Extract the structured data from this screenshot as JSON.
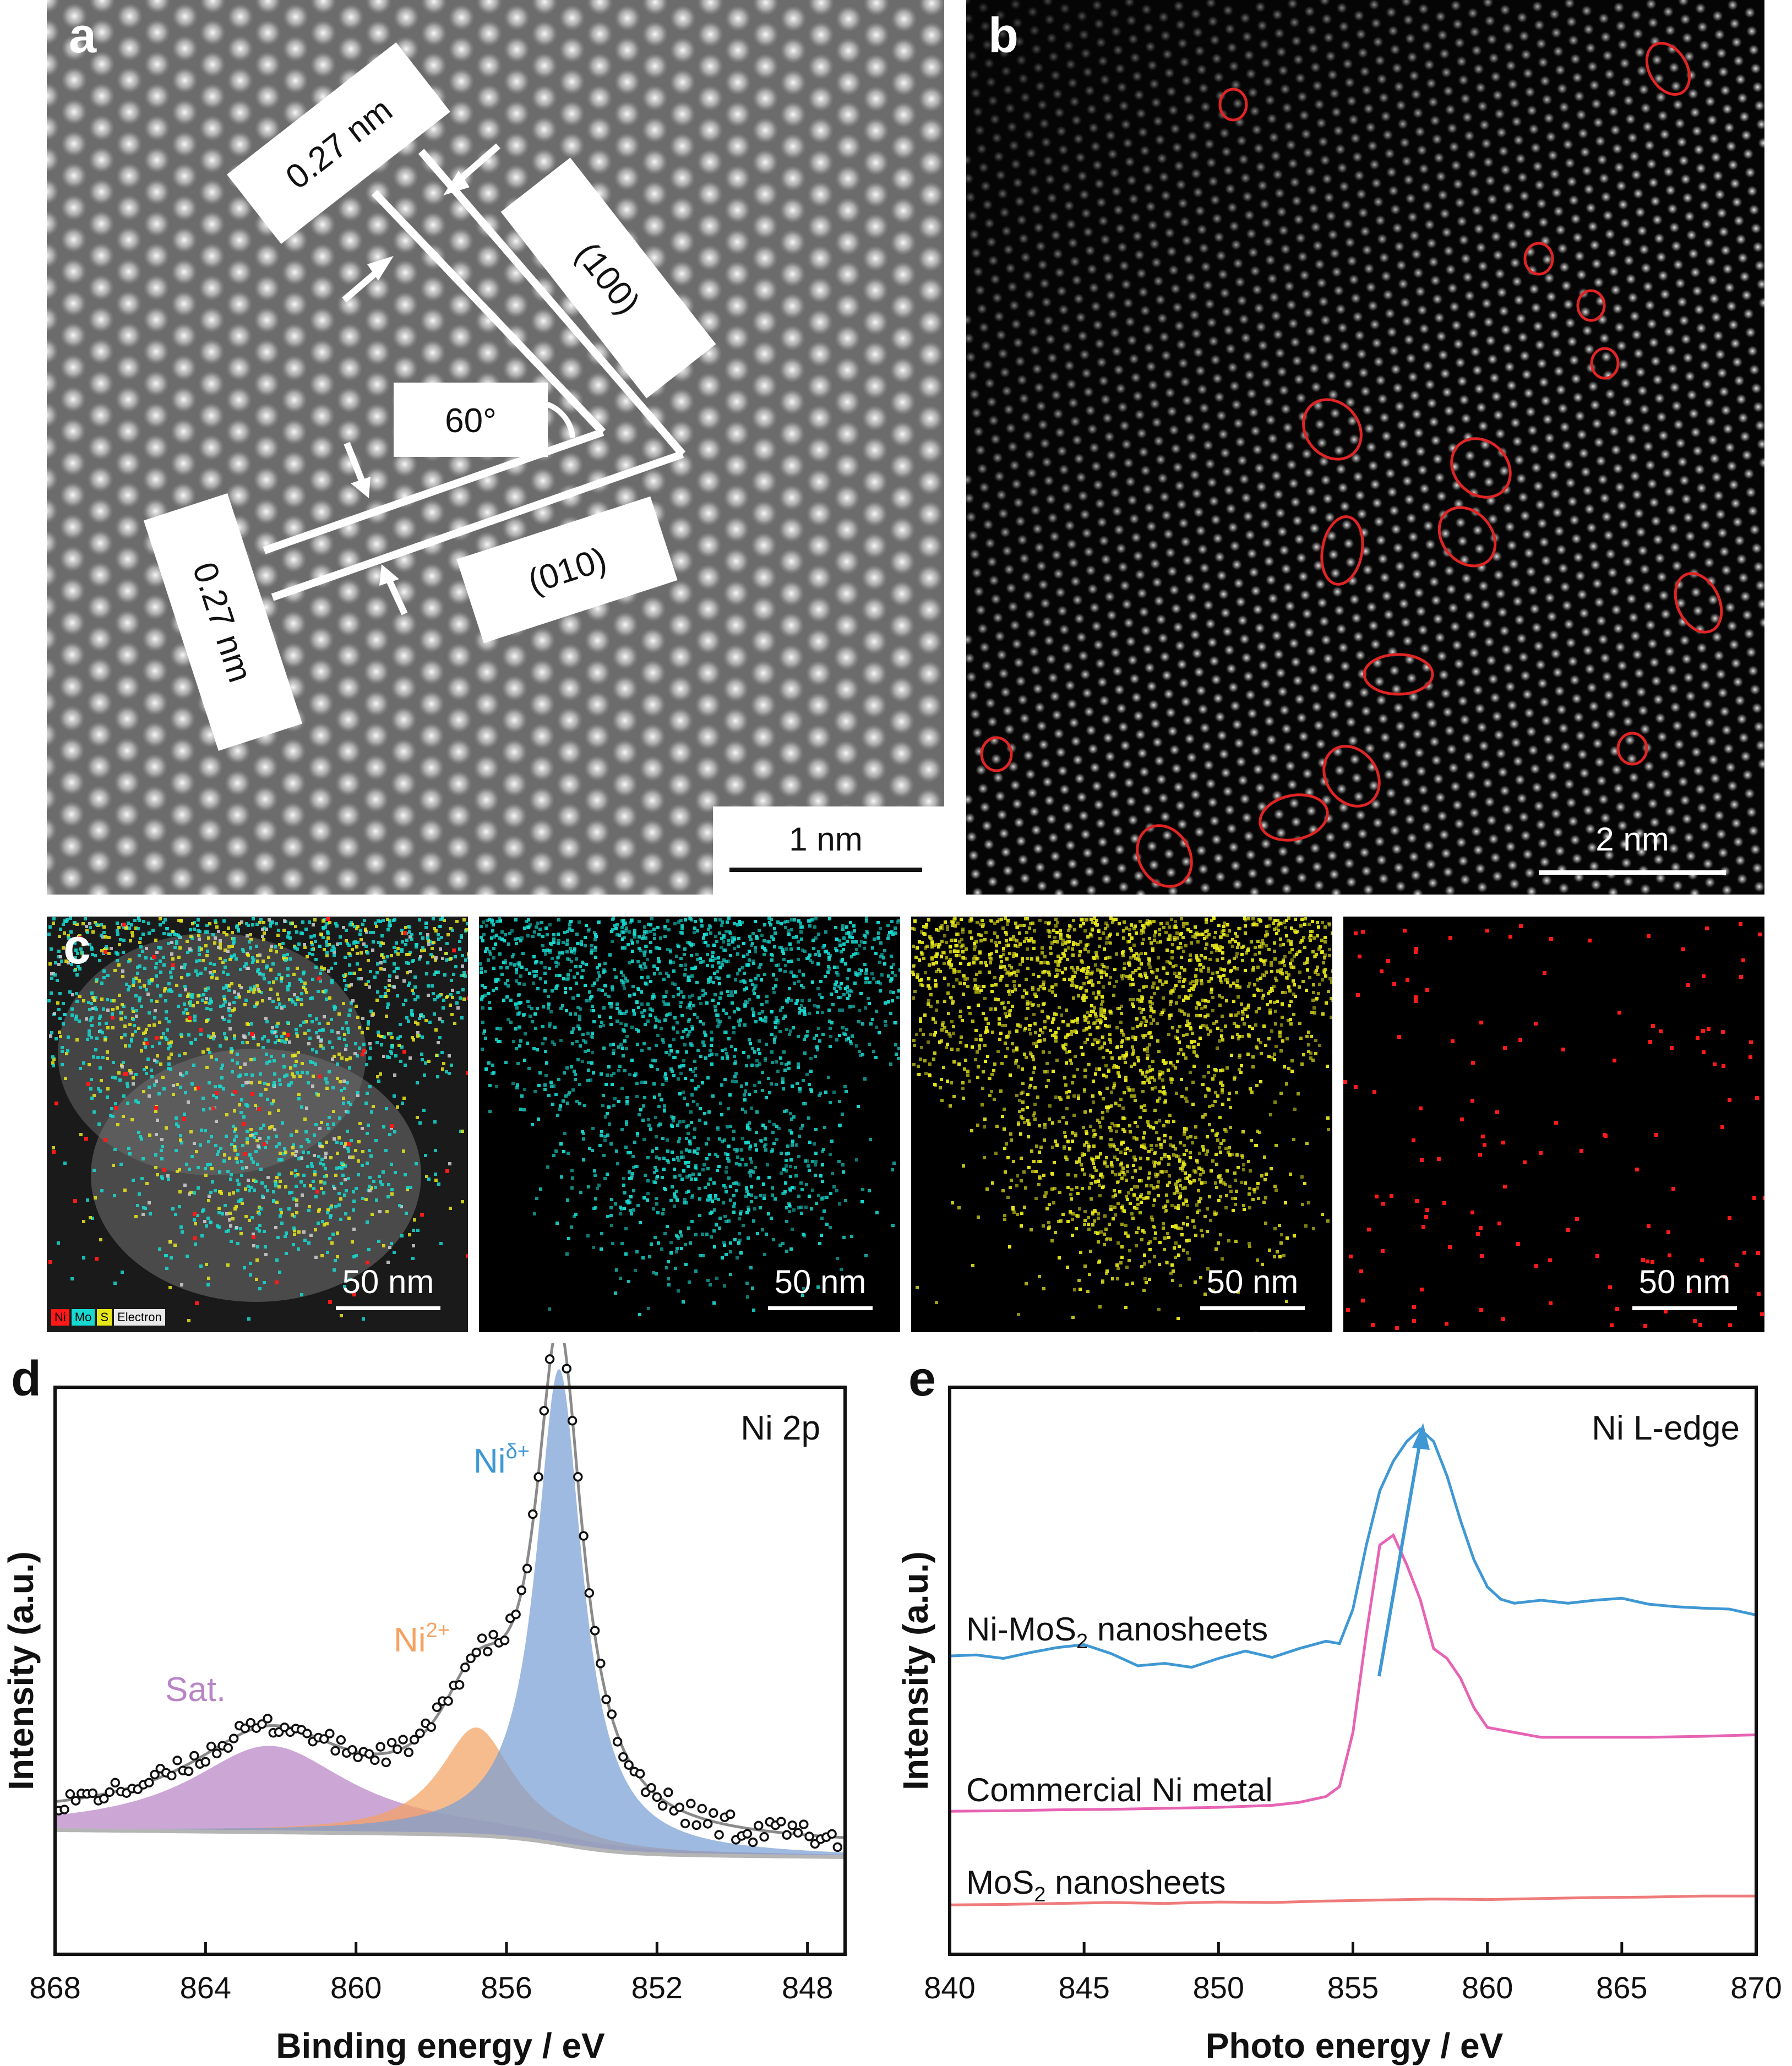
{
  "panel_a": {
    "letter": "a",
    "spacing_top": "0.27 nm",
    "spacing_left": "0.27 nm",
    "plane_100": "(100)",
    "plane_010": "(010)",
    "angle": "60°",
    "scale_bar": "1 nm"
  },
  "panel_b": {
    "letter": "b",
    "scale_bar": "2 nm",
    "marker_color": "#e02424"
  },
  "panel_c": {
    "letter": "c",
    "scale_bars": [
      "50 nm",
      "50 nm",
      "50 nm",
      "50 nm"
    ],
    "legend": [
      "Ni",
      "Mo",
      "S",
      "Electron"
    ],
    "colors": {
      "Ni": "#ff1a1a",
      "Mo": "#17d9d0",
      "S": "#e6e61a",
      "Electron": "#cfcfcf"
    }
  },
  "panel_d": {
    "letter": "d",
    "chart_data": {
      "type": "line",
      "title": "Ni 2p",
      "xlabel": "Binding energy / eV",
      "ylabel": "Intensity (a.u.)",
      "xlim": [
        868,
        847
      ],
      "ylim": [
        0,
        1.05
      ],
      "xticks": [
        868,
        864,
        860,
        856,
        852,
        848
      ],
      "peaks": [
        {
          "name": "Sat.",
          "center": 862.3,
          "height": 0.16,
          "color": "#b985c6"
        },
        {
          "name": "Ni²⁺",
          "center": 856.8,
          "height": 0.2,
          "color": "#f4a261"
        },
        {
          "name": "Niδ⁺",
          "center": 854.6,
          "height": 0.88,
          "color": "#7a9fd4"
        }
      ],
      "label_sat": "Sat.",
      "label_ni2": "Ni",
      "label_ni2_sup": "2+",
      "label_nid": "Ni",
      "label_nid_sup": "δ+"
    }
  },
  "panel_e": {
    "letter": "e",
    "chart_data": {
      "type": "line",
      "title": "Ni L-edge",
      "xlabel": "Photo energy / eV",
      "ylabel": "Intensity (a.u.)",
      "xlim": [
        840,
        870
      ],
      "xticks": [
        840,
        845,
        850,
        855,
        860,
        865,
        870
      ],
      "series": [
        {
          "name": "Ni-MoS₂ nanosheets",
          "label_pre": "Ni-MoS",
          "label_sub": "2",
          "label_post": " nanosheets",
          "color": "#3f98d4",
          "x": [
            840,
            841,
            842,
            843,
            844,
            845,
            846,
            847,
            848,
            849,
            850,
            851,
            852,
            853,
            854,
            854.5,
            855,
            855.5,
            856,
            856.5,
            857,
            857.5,
            858,
            858.5,
            859,
            859.5,
            860,
            860.5,
            861,
            862,
            863,
            864,
            865,
            866,
            867,
            868,
            869,
            870
          ],
          "y": [
            0.605,
            0.607,
            0.6,
            0.612,
            0.622,
            0.628,
            0.61,
            0.585,
            0.59,
            0.582,
            0.6,
            0.615,
            0.602,
            0.62,
            0.635,
            0.63,
            0.7,
            0.83,
            0.94,
            1.0,
            1.04,
            1.065,
            1.04,
            0.97,
            0.88,
            0.8,
            0.745,
            0.72,
            0.712,
            0.718,
            0.712,
            0.718,
            0.722,
            0.71,
            0.705,
            0.702,
            0.7,
            0.688
          ]
        },
        {
          "name": "Commercial Ni metal",
          "color": "#e763b4",
          "x": [
            840,
            842,
            844,
            846,
            848,
            850,
            852,
            853,
            854,
            854.5,
            855,
            855.5,
            856,
            856.5,
            857,
            857.5,
            858,
            858.5,
            859,
            859.5,
            860,
            861,
            862,
            864,
            866,
            868,
            870
          ],
          "y": [
            0.29,
            0.291,
            0.293,
            0.294,
            0.296,
            0.298,
            0.302,
            0.308,
            0.32,
            0.34,
            0.45,
            0.65,
            0.83,
            0.85,
            0.79,
            0.72,
            0.62,
            0.6,
            0.56,
            0.5,
            0.46,
            0.45,
            0.44,
            0.44,
            0.44,
            0.442,
            0.445
          ]
        },
        {
          "name": "MoS₂ nanosheets",
          "label_pre": "MoS",
          "label_sub": "2",
          "label_post": " nanosheets",
          "color": "#ef7b7b",
          "x": [
            840,
            842,
            844,
            846,
            848,
            850,
            852,
            854,
            856,
            858,
            860,
            862,
            864,
            866,
            868,
            870
          ],
          "y": [
            0.1,
            0.101,
            0.103,
            0.105,
            0.103,
            0.106,
            0.105,
            0.108,
            0.11,
            0.112,
            0.111,
            0.113,
            0.115,
            0.116,
            0.118,
            0.118
          ]
        }
      ]
    }
  }
}
